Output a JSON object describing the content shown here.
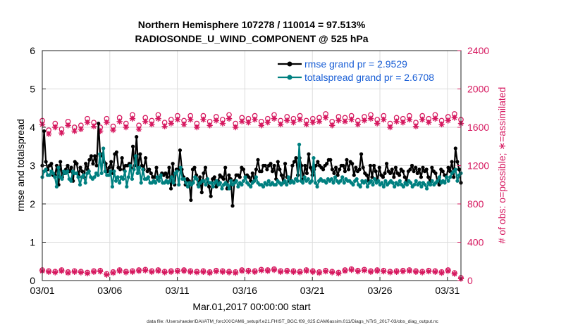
{
  "figure": {
    "title_line1": "Northern Hemisphere 107278 / 110014 = 97.513%",
    "title_line2": "RADIOSONDE_U_WIND_COMPONENT @ 525 hPa",
    "xlabel": "Mar.01,2017 00:00:00 start",
    "ylabel_left": "rmse and totalspread",
    "ylabel_right": "# of obs: o=possible; ∗=assimilated",
    "footer": "data file: /Users/raeder/DAI/ATM_forcXX/CAM6_setup/f.e21.FHIST_BGC.f09_025.CAM6assim.011/Diags_NTrS_2017-03/obs_diag_output.nc",
    "colors": {
      "rmse": "#000000",
      "spread": "#008080",
      "obs": "#d6185f",
      "legend_text": "#1a5fd6"
    }
  },
  "chart_data": {
    "type": "line",
    "title": "Northern Hemisphere 107278 / 110014 = 97.513%",
    "subtitle": "RADIOSONDE_U_WIND_COMPONENT @ 525 hPa",
    "xlabel": "Mar.01,2017 00:00:00 start",
    "xlim": [
      1,
      32
    ],
    "x_ticks": [
      1,
      6,
      11,
      16,
      21,
      26,
      31
    ],
    "x_tick_labels": [
      "03/01",
      "03/06",
      "03/11",
      "03/16",
      "03/21",
      "03/26",
      "03/31"
    ],
    "y_left": {
      "label": "rmse and totalspread",
      "lim": [
        0,
        6
      ],
      "ticks": [
        0,
        1,
        2,
        3,
        4,
        5,
        6
      ]
    },
    "y_right": {
      "label": "# of obs: o=possible; ∗=assimilated",
      "lim": [
        0,
        2400
      ],
      "ticks": [
        0,
        400,
        800,
        1200,
        1600,
        2000,
        2400
      ]
    },
    "grid": true,
    "legend_position": "top-right",
    "series": [
      {
        "name": "rmse grand pr = 2.9529",
        "axis": "left",
        "style": "line-dot",
        "values": [
          3.0,
          3.9,
          3.1,
          2.9,
          3.0,
          3.05,
          2.75,
          2.75,
          3.0,
          2.5,
          3.1,
          2.7,
          2.8,
          2.9,
          3.0,
          2.85,
          2.95,
          2.6,
          3.1,
          3.05,
          2.75,
          2.95,
          2.85,
          2.7,
          3.05,
          2.9,
          3.15,
          3.25,
          3.05,
          3.25,
          3.0,
          4.1,
          3.25,
          3.3,
          3.1,
          3.05,
          2.85,
          2.95,
          3.1,
          2.8,
          3.3,
          3.35,
          2.95,
          2.9,
          3.2,
          2.9,
          3.0,
          3.0,
          3.05,
          2.95,
          3.5,
          3.0,
          3.75,
          2.95,
          3.3,
          3.0,
          2.9,
          3.2,
          2.85,
          2.9,
          2.8,
          2.7,
          2.7,
          2.95,
          2.65,
          2.7,
          2.8,
          2.75,
          2.8,
          2.7,
          2.95,
          2.4,
          3.05,
          2.5,
          2.9,
          2.9,
          3.4,
          2.9,
          2.7,
          2.5,
          2.65,
          2.6,
          2.1,
          2.9,
          2.95,
          2.75,
          2.5,
          2.7,
          2.3,
          2.8,
          2.95,
          2.65,
          2.45,
          2.2,
          2.65,
          2.7,
          2.45,
          2.6,
          2.75,
          2.7,
          2.65,
          2.95,
          2.4,
          2.75,
          2.65,
          1.95,
          2.6,
          2.75,
          2.75,
          2.7,
          2.95,
          2.9,
          2.7,
          2.75,
          2.7,
          2.6,
          2.8,
          2.6,
          2.9,
          3.15,
          2.85,
          2.85,
          3.0,
          3.0,
          2.9,
          3.0,
          3.05,
          2.85,
          3.0,
          2.65,
          3.1,
          2.9,
          2.75,
          2.55,
          3.05,
          2.7,
          2.6,
          2.6,
          3.0,
          3.1,
          3.2,
          2.75,
          3.2,
          3.0,
          2.65,
          3.0,
          2.8,
          3.3,
          2.95,
          2.75,
          2.9,
          3.0,
          3.1,
          3.0,
          2.95,
          2.9,
          3.0,
          3.05,
          3.15,
          3.15,
          2.9,
          2.8,
          2.95,
          2.75,
          2.9,
          3.0,
          3.0,
          2.85,
          3.15,
          2.9,
          3.1,
          3.05,
          2.75,
          2.95,
          2.85,
          2.9,
          3.3,
          2.95,
          2.8,
          2.75,
          2.6,
          3.0,
          2.7,
          3.0,
          2.85,
          2.6,
          2.95,
          2.75,
          2.7,
          2.8,
          3.05,
          2.85,
          2.8,
          2.9,
          2.7,
          2.95,
          2.8,
          2.75,
          2.9,
          2.85,
          2.7,
          2.6,
          2.85,
          2.9,
          3.0,
          2.85,
          2.95,
          2.8,
          2.9,
          2.7,
          2.95,
          2.85,
          2.9,
          2.7,
          2.55,
          2.95,
          2.85,
          2.8,
          2.6,
          2.5,
          2.9,
          2.85,
          2.75,
          2.7,
          2.95,
          2.85,
          3.1,
          2.7,
          3.45,
          3.1,
          2.9,
          2.55
        ]
      },
      {
        "name": "totalspread grand pr = 2.6708",
        "axis": "left",
        "style": "line-dot",
        "values": [
          2.7,
          2.85,
          2.9,
          2.75,
          2.75,
          2.85,
          2.8,
          2.7,
          2.45,
          2.95,
          2.7,
          2.65,
          2.85,
          2.8,
          2.85,
          2.65,
          2.6,
          2.85,
          2.8,
          2.8,
          2.7,
          2.5,
          2.7,
          2.75,
          2.55,
          2.8,
          2.85,
          2.7,
          2.65,
          2.7,
          2.8,
          2.75,
          3.3,
          2.8,
          3.45,
          2.85,
          2.75,
          2.75,
          2.85,
          2.45,
          2.85,
          2.6,
          2.7,
          2.55,
          2.7,
          2.65,
          2.85,
          2.45,
          2.7,
          3.0,
          2.65,
          2.9,
          3.25,
          2.8,
          2.95,
          2.55,
          2.9,
          2.65,
          2.65,
          2.7,
          2.55,
          2.55,
          2.6,
          2.55,
          2.7,
          2.6,
          2.75,
          2.55,
          2.55,
          2.6,
          2.55,
          2.6,
          2.7,
          2.55,
          2.8,
          2.85,
          2.5,
          2.95,
          2.65,
          2.65,
          2.55,
          2.45,
          2.55,
          2.5,
          2.55,
          2.7,
          2.65,
          2.45,
          2.55,
          2.6,
          2.6,
          2.5,
          2.65,
          2.55,
          2.55,
          2.45,
          2.55,
          2.6,
          2.5,
          2.55,
          2.4,
          2.5,
          2.55,
          2.5,
          2.4,
          2.6,
          2.5,
          2.55,
          2.6,
          2.45,
          2.55,
          2.5,
          2.6,
          2.7,
          2.55,
          2.5,
          2.45,
          2.55,
          2.6,
          2.7,
          2.55,
          2.5,
          2.5,
          2.45,
          2.55,
          2.5,
          2.6,
          2.5,
          2.55,
          2.5,
          2.5,
          2.6,
          2.55,
          2.5,
          2.55,
          2.6,
          2.5,
          2.7,
          2.55,
          2.6,
          2.55,
          2.65,
          2.6,
          3.55,
          2.6,
          2.55,
          2.7,
          2.6,
          2.65,
          2.55,
          2.6,
          3.2,
          2.55,
          2.45,
          2.6,
          2.65,
          2.6,
          2.6,
          2.55,
          2.65,
          2.6,
          2.65,
          2.55,
          2.7,
          2.6,
          2.55,
          2.6,
          2.7,
          2.55,
          2.65,
          2.6,
          2.6,
          2.55,
          2.5,
          2.6,
          2.65,
          2.5,
          2.45,
          2.6,
          2.55,
          2.6,
          2.45,
          2.55,
          2.6,
          2.5,
          2.65,
          2.55,
          2.6,
          2.5,
          2.55,
          2.45,
          2.6,
          2.5,
          2.55,
          2.6,
          2.55,
          2.45,
          2.55,
          2.5,
          2.6,
          2.5,
          2.45,
          2.55,
          2.5,
          2.6,
          2.55,
          2.45,
          2.5,
          2.6,
          2.5,
          2.55,
          2.45,
          2.55,
          2.5,
          2.4,
          2.55,
          2.5,
          2.6,
          2.5,
          2.55,
          2.6,
          2.7,
          2.55,
          2.6,
          2.55,
          2.7,
          2.6,
          2.7,
          2.8,
          2.85,
          2.9,
          2.6,
          2.75,
          2.8
        ]
      },
      {
        "name": "possible",
        "axis": "right",
        "style": "circle",
        "values": [
          1670,
          1570,
          1640,
          1580,
          1660,
          1600,
          1620,
          1690,
          1650,
          1600,
          1690,
          1610,
          1700,
          1640,
          1730,
          1620,
          1700,
          1670,
          1730,
          1650,
          1680,
          1720,
          1670,
          1720,
          1640,
          1720,
          1660,
          1710,
          1680,
          1730,
          1640,
          1700,
          1690,
          1720,
          1660,
          1690,
          1730,
          1670,
          1710,
          1690,
          1720,
          1670,
          1690,
          1700,
          1740,
          1660,
          1710,
          1700,
          1720,
          1670,
          1710,
          1730,
          1680,
          1720,
          1640,
          1700,
          1690,
          1720,
          1650,
          1720,
          1690,
          1730,
          1670,
          1710,
          1740,
          1680
        ]
      },
      {
        "name": "assimilated",
        "axis": "right",
        "style": "star",
        "values": [
          1630,
          1530,
          1600,
          1540,
          1620,
          1560,
          1580,
          1650,
          1610,
          1560,
          1650,
          1570,
          1660,
          1600,
          1690,
          1580,
          1660,
          1630,
          1690,
          1610,
          1640,
          1680,
          1630,
          1680,
          1600,
          1680,
          1620,
          1670,
          1640,
          1690,
          1600,
          1660,
          1650,
          1680,
          1620,
          1650,
          1690,
          1630,
          1670,
          1650,
          1680,
          1630,
          1650,
          1660,
          1700,
          1620,
          1670,
          1660,
          1680,
          1630,
          1670,
          1690,
          1640,
          1680,
          1600,
          1660,
          1650,
          1680,
          1610,
          1680,
          1650,
          1690,
          1630,
          1670,
          1700,
          1640
        ]
      },
      {
        "name": "obs count (near zero, possible)",
        "axis": "right",
        "style": "circle",
        "values": [
          110,
          100,
          95,
          110,
          90,
          100,
          95,
          85,
          100,
          105,
          70,
          90,
          110,
          95,
          100,
          110,
          115,
          100,
          110,
          95,
          100,
          105,
          110,
          100,
          95,
          100,
          90,
          105,
          100,
          95,
          90,
          110,
          105,
          100,
          115,
          110,
          120,
          100,
          105,
          100,
          95,
          110,
          100,
          90,
          105,
          95,
          85,
          110,
          120,
          105,
          115,
          100,
          110,
          105,
          95,
          100,
          105,
          110,
          100,
          95,
          105,
          100,
          90,
          110,
          80,
          30
        ]
      },
      {
        "name": "obs count (near zero, assimilated)",
        "axis": "right",
        "style": "star",
        "values": [
          100,
          90,
          85,
          100,
          80,
          90,
          85,
          75,
          90,
          95,
          60,
          80,
          100,
          85,
          90,
          100,
          105,
          90,
          100,
          85,
          90,
          95,
          100,
          90,
          85,
          90,
          80,
          95,
          90,
          85,
          80,
          100,
          95,
          90,
          105,
          100,
          110,
          90,
          95,
          90,
          85,
          100,
          90,
          80,
          95,
          85,
          75,
          100,
          110,
          95,
          105,
          90,
          100,
          95,
          85,
          90,
          95,
          100,
          90,
          85,
          95,
          90,
          80,
          100,
          70,
          20
        ]
      }
    ],
    "legend": [
      {
        "label": "rmse grand pr = 2.9529",
        "series": "rmse"
      },
      {
        "label": "totalspread grand pr = 2.6708",
        "series": "spread"
      }
    ]
  }
}
